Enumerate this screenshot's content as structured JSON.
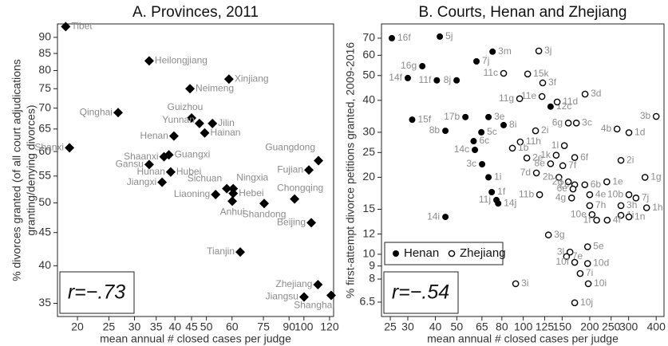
{
  "chart_data": [
    {
      "type": "scatter",
      "title": "A. Provinces, 2011",
      "x_label": "mean annual # closed cases per judge",
      "y_label": [
        "% divorces granted (of all court adjudications",
        "granting/denying divorces)"
      ],
      "xscale": "log",
      "yscale": "log",
      "xlim": [
        17.35,
        123.5
      ],
      "ylim": [
        33.4,
        94.4
      ],
      "xticks": [
        20,
        25,
        30,
        35,
        40,
        45,
        50,
        60,
        75,
        90,
        100,
        120
      ],
      "yticks": [
        35,
        40,
        45,
        50,
        55,
        60,
        65,
        70,
        75,
        80,
        85,
        90
      ],
      "annotation": "r=−.73",
      "label_color": "#8c8c8c",
      "series": [
        {
          "color": "#000000",
          "marker": "diamond",
          "labels": [
            "Tibet",
            "Heilongjiang",
            "Neimeng",
            "Xinjiang",
            "Qinghai",
            "Guizhou",
            "Yunnan",
            "Jilin",
            "Hainan",
            "Henan",
            "Shanxi",
            "Shaanxi",
            "Guangxi",
            "Gansu",
            "Hunan",
            "Hubei",
            "Guangdong",
            "Fujian",
            "Jiangxi",
            "Sichuan",
            "Ningxia",
            "Hebei",
            "Liaoning",
            "Anhui",
            "Chongqing",
            "Shandong",
            "Beijing",
            "Tianjin",
            "Zhejiang",
            "Jiangsu",
            "Shanghai"
          ],
          "x": [
            18.4,
            33.3,
            44.5,
            58.7,
            26.7,
            45,
            47.6,
            52.2,
            49.4,
            39.7,
            18.9,
            37.0,
            38.3,
            33.3,
            38.8,
            38.8,
            110.9,
            103.6,
            36.5,
            57.8,
            60.5,
            60.5,
            53.4,
            60.1,
            93.6,
            75.4,
            105.4,
            63.6,
            110.5,
            100.1,
            121.4
          ],
          "values": [
            93.5,
            82.8,
            75,
            77.6,
            68.9,
            67.6,
            66.3,
            66.3,
            64.1,
            63.4,
            60.8,
            58.9,
            59.3,
            57.3,
            55.8,
            55.8,
            58.1,
            56.2,
            53.8,
            52.6,
            52.6,
            51.7,
            51.5,
            50.3,
            50.7,
            49.9,
            46.6,
            42.0,
            37.4,
            35.8,
            36.0
          ]
        }
      ]
    },
    {
      "type": "scatter",
      "title": "B. Courts, Henan and Zhejiang",
      "x_label": "mean annual # closed cases per judge",
      "y_label": [
        "% first-attempt divorce petitions granted, 2009-2016"
      ],
      "xscale": "log",
      "yscale": "log",
      "xlim": [
        22.8,
        434
      ],
      "ylim": [
        5.71,
        79.6
      ],
      "xticks": [
        25,
        30,
        40,
        50,
        65,
        80,
        100,
        125,
        150,
        200,
        250,
        300,
        400
      ],
      "yticks": [
        6.5,
        8,
        9,
        10,
        12,
        15,
        20,
        25,
        30,
        40,
        50,
        60,
        70
      ],
      "annotation": "r=−.54",
      "label_color": "#8c8c8c",
      "legend": "lower left",
      "series": [
        {
          "name": "Henan",
          "color": "#000000",
          "marker": "filled",
          "labels": [
            "16f",
            "5j",
            "3m",
            "7j",
            "16g",
            "14f",
            "11f",
            "8j",
            "12c",
            "17b",
            "15f",
            "3e",
            "8i",
            "8b",
            "5c",
            "6c",
            "14c",
            "3c",
            "1i",
            "1f",
            "11j",
            "14j",
            "14i"
          ],
          "x": [
            25.4,
            41.9,
            72.6,
            61.4,
            34.9,
            30.0,
            40.6,
            49.9,
            133,
            54.7,
            31.4,
            69.6,
            81.5,
            44.4,
            64.6,
            59.6,
            60.4,
            65.1,
            69.6,
            72,
            75.6,
            77,
            44.4
          ],
          "values": [
            70,
            71,
            62,
            56.8,
            54.4,
            48.9,
            47.9,
            47.9,
            37.8,
            34.4,
            33.6,
            34.4,
            32,
            30.4,
            30,
            27.7,
            25.6,
            22.5,
            20,
            17.5,
            16.3,
            15.8,
            14
          ]
        },
        {
          "name": "Zhejiang",
          "color": "#000000",
          "marker": "hollow",
          "labels": [
            "3j",
            "15k",
            "11c",
            "3f",
            "11e",
            "3d",
            "11g",
            "11d",
            "3b",
            "6g",
            "3c",
            "4b",
            "1d",
            "2i",
            "11h",
            "1b",
            "1l",
            "1k",
            "8e",
            "2e",
            "7f",
            "6f",
            "2i",
            "7d",
            "2b",
            "2d",
            "2c",
            "6b",
            "1e",
            "1g",
            "6e",
            "4e",
            "11b",
            "10b",
            "7j",
            "4g",
            "7h",
            "3h",
            "1h",
            "10e",
            "1i",
            "1f",
            "4f",
            "1n",
            "3g",
            "5e",
            "3l",
            "7e",
            "10f",
            "10d",
            "7i",
            "3i",
            "10i",
            "10j"
          ],
          "x": [
            117.6,
            104.7,
            81.5,
            122.5,
            121.6,
            190.5,
            96.3,
            142.4,
            400,
            160,
            174,
            266,
            301,
            113.7,
            96.9,
            89.3,
            153.5,
            141,
            133,
            103.8,
            151,
            171,
            277,
            114.7,
            145,
            160,
            171,
            190,
            239,
            356,
            168,
            200,
            118.6,
            301,
            324,
            165.6,
            200,
            277,
            362,
            205,
            277,
            215,
            240,
            301,
            130,
            195.6,
            162.8,
            157,
            171,
            195.6,
            181,
            92.4,
            197,
            171
          ],
          "values": [
            62.4,
            50.7,
            51,
            46.8,
            41.4,
            42.3,
            40.6,
            39.4,
            34.6,
            32.6,
            32.6,
            30.9,
            29.9,
            30.4,
            27.5,
            26,
            26.6,
            24.4,
            22.6,
            23.8,
            22.2,
            23.9,
            23.3,
            20.8,
            20,
            19.2,
            18.7,
            18.7,
            19.2,
            20,
            18.0,
            17.1,
            17.1,
            17.1,
            16.6,
            16.6,
            15.5,
            15.5,
            15.2,
            14.3,
            14.2,
            13.6,
            13.6,
            14.0,
            11.9,
            10.7,
            10.2,
            9.8,
            9.3,
            9.2,
            8.41,
            7.67,
            7.67,
            6.46
          ]
        }
      ]
    }
  ]
}
